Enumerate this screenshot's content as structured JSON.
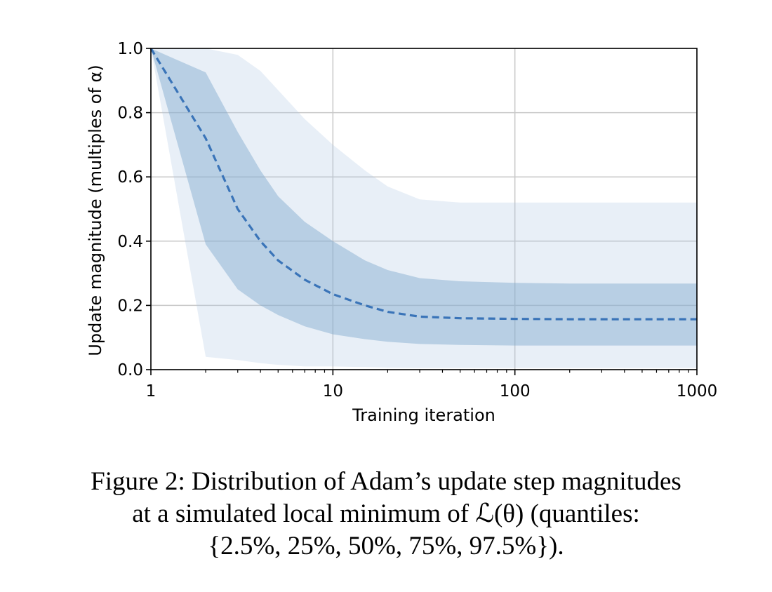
{
  "chart_data": {
    "type": "area",
    "xlabel": "Training iteration",
    "ylabel": "Update magnitude (multiples of α)",
    "x_scale": "log",
    "xlim": [
      1,
      1000
    ],
    "ylim": [
      0,
      1.0
    ],
    "x_ticks": [
      "1",
      "10",
      "100",
      "1000"
    ],
    "y_ticks": [
      "0.0",
      "0.2",
      "0.4",
      "0.6",
      "0.8",
      "1.0"
    ],
    "grid": true,
    "colors": {
      "median": "#3a74b8",
      "band_inner": "#7fa8cd",
      "band_outer": "#aec7e1"
    },
    "x": [
      1,
      2,
      3,
      4,
      5,
      7,
      10,
      15,
      20,
      30,
      50,
      100,
      200,
      500,
      1000
    ],
    "series": [
      {
        "quantile": "2.5%",
        "values": [
          1.0,
          0.04,
          0.03,
          0.02,
          0.015,
          0.01,
          0.01,
          0.008,
          0.006,
          0.005,
          0.005,
          0.005,
          0.005,
          0.005,
          0.005
        ]
      },
      {
        "quantile": "25%",
        "values": [
          1.0,
          0.39,
          0.25,
          0.2,
          0.17,
          0.135,
          0.11,
          0.095,
          0.087,
          0.08,
          0.077,
          0.075,
          0.075,
          0.075,
          0.075
        ]
      },
      {
        "quantile": "50%",
        "values": [
          1.0,
          0.72,
          0.5,
          0.4,
          0.34,
          0.28,
          0.235,
          0.2,
          0.18,
          0.165,
          0.16,
          0.158,
          0.157,
          0.157,
          0.157
        ]
      },
      {
        "quantile": "75%",
        "values": [
          1.0,
          0.925,
          0.74,
          0.62,
          0.54,
          0.46,
          0.4,
          0.34,
          0.31,
          0.285,
          0.275,
          0.27,
          0.268,
          0.268,
          0.268
        ]
      },
      {
        "quantile": "97.5%",
        "values": [
          1.0,
          1.0,
          0.98,
          0.93,
          0.87,
          0.78,
          0.7,
          0.62,
          0.57,
          0.53,
          0.52,
          0.52,
          0.52,
          0.52,
          0.52
        ]
      }
    ]
  },
  "caption": {
    "line1": "Figure 2: Distribution of Adam’s update step magnitudes",
    "line2": "at a simulated local minimum of ℒ(θ) (quantiles:",
    "line3": "{2.5%, 25%, 50%, 75%, 97.5%})."
  }
}
